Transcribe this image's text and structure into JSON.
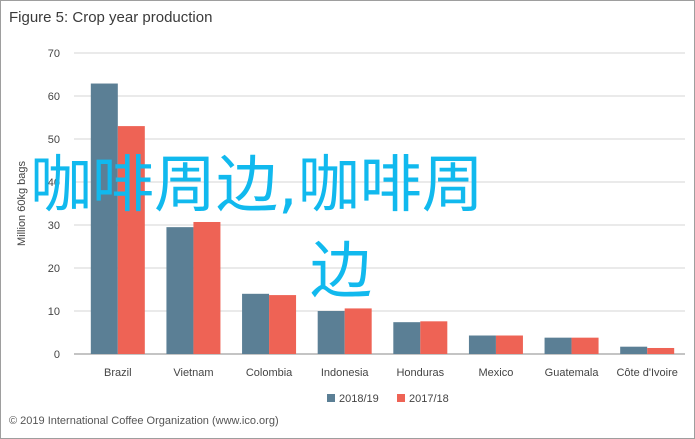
{
  "figure_title": "Figure 5: Crop year production",
  "footer": "© 2019 International Coffee Organization (www.ico.org)",
  "overlay_text": {
    "line1": "咖啡周边,咖啡周",
    "line2": "边",
    "color": "#11b9ee"
  },
  "chart_data": {
    "type": "bar",
    "title": "Figure 5: Crop year production",
    "xlabel": "",
    "ylabel": "Million 60kg bags",
    "ylim": [
      0,
      70
    ],
    "yticks": [
      0,
      10,
      20,
      30,
      40,
      50,
      60,
      70
    ],
    "grid": true,
    "legend_position": "bottom",
    "categories": [
      "Brazil",
      "Vietnam",
      "Colombia",
      "Indonesia",
      "Honduras",
      "Mexico",
      "Guatemala",
      "Côte d'Ivoire"
    ],
    "series": [
      {
        "name": "2018/19",
        "color": "#5b7f95",
        "values": [
          62.9,
          29.5,
          14.0,
          10.0,
          7.4,
          4.3,
          3.8,
          1.7
        ]
      },
      {
        "name": "2017/18",
        "color": "#ee6355",
        "values": [
          53.0,
          30.7,
          13.7,
          10.6,
          7.6,
          4.3,
          3.8,
          1.4
        ]
      }
    ]
  }
}
